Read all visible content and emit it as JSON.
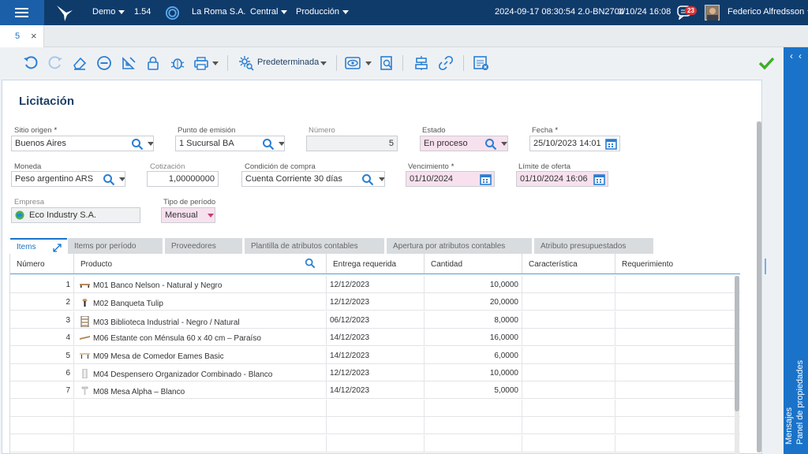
{
  "topbar": {
    "env": "Demo",
    "version": "1.54",
    "company": "La Roma S.A.",
    "branch": "Central",
    "stage": "Producción",
    "build": "2024-09-17 08:30:54 2.0-BN2704",
    "datetime": "1/10/24 16:08",
    "notif_count": "23",
    "user": "Federico Alfredsson"
  },
  "tab": {
    "label": "5",
    "close": "×"
  },
  "toolbar": {
    "view_label": "Predeterminada",
    "accent": "#2a7fd4",
    "ok_color": "#3fae29"
  },
  "side": {
    "props": "Panel de propiedades",
    "msgs": "Mensajes"
  },
  "page": {
    "title": "Licitación"
  },
  "fields": {
    "sitio_label": "Sitio origen",
    "sitio": "Buenos Aires",
    "punto_label": "Punto de emisión",
    "punto": "1 Sucursal BA",
    "numero_label": "Número",
    "numero": "5",
    "estado_label": "Estado",
    "estado": "En proceso",
    "fecha_label": "Fecha",
    "fecha": "25/10/2023 14:01",
    "moneda_label": "Moneda",
    "moneda": "Peso argentino ARS",
    "cotiz_label": "Cotización",
    "cotiz": "1,00000000",
    "cond_label": "Condición de compra",
    "cond": "Cuenta Corriente 30 días",
    "venc_label": "Vencimiento",
    "venc": "01/10/2024",
    "limite_label": "Límite de oferta",
    "limite": "01/10/2024 16:06",
    "empresa_label": "Empresa",
    "empresa": "Eco Industry S.A.",
    "tipo_label": "Tipo de período",
    "tipo": "Mensual",
    "required": "*"
  },
  "grid_tabs": [
    "Items",
    "Items por período",
    "Proveedores",
    "Plantilla de atributos contables",
    "Apertura por atributos contables",
    "Atributo presupuestados"
  ],
  "columns": [
    "Número",
    "Producto",
    "Entrega requerida",
    "Cantidad",
    "Característica",
    "Requerimiento"
  ],
  "rows": [
    {
      "n": "1",
      "p": "M01 Banco Nelson - Natural y Negro",
      "e": "12/12/2023",
      "c": "10,0000"
    },
    {
      "n": "2",
      "p": "M02 Banqueta Tulip",
      "e": "12/12/2023",
      "c": "20,0000"
    },
    {
      "n": "3",
      "p": "M03 Biblioteca Industrial - Negro / Natural",
      "e": "06/12/2023",
      "c": "8,0000"
    },
    {
      "n": "4",
      "p": "M06 Estante con Ménsula 60 x 40 cm – Paraíso",
      "e": "14/12/2023",
      "c": "16,0000"
    },
    {
      "n": "5",
      "p": "M09 Mesa de Comedor Eames Basic",
      "e": "14/12/2023",
      "c": "6,0000"
    },
    {
      "n": "6",
      "p": "M04 Despensero Organizador Combinado - Blanco",
      "e": "12/12/2023",
      "c": "10,0000"
    },
    {
      "n": "7",
      "p": "M08 Mesa Alpha – Blanco",
      "e": "14/12/2023",
      "c": "5,0000"
    }
  ]
}
